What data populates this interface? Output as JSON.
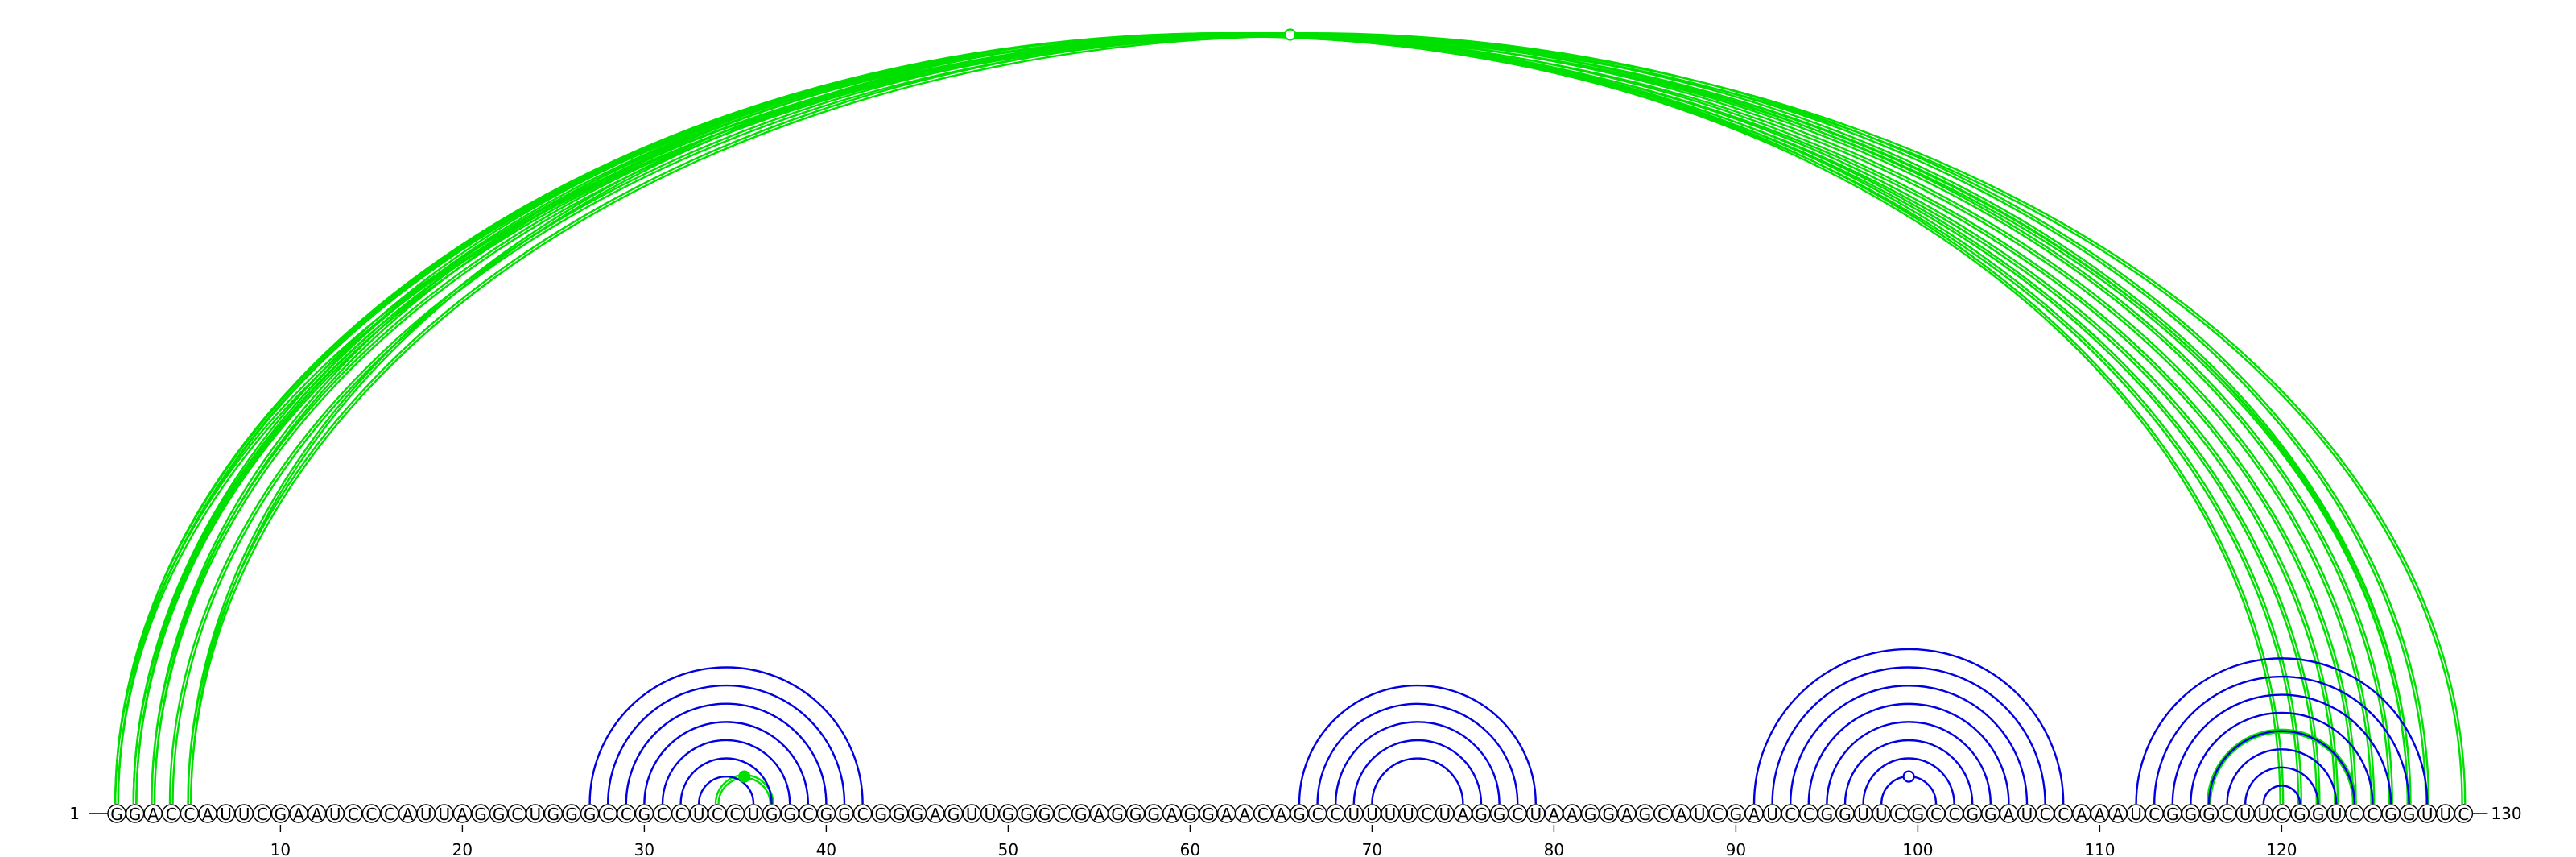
{
  "sequence": "GGACCAUUCGAAUCCCAUUAGGCUGGGCCGCCUCCUGGCGGCGGGAGUUGGGCGAGGGAGGAACAGCCUUUUCUAGGCUAAGGAGCAUCGAUCCGGUUCGCCGGAUCCAAAUCGGGCUUCGGUCCGGUUC",
  "start_label": "1",
  "end_label": "130",
  "ticks": [
    "10",
    "20",
    "30",
    "40",
    "50",
    "60",
    "70",
    "80",
    "90",
    "100",
    "110",
    "120"
  ],
  "colors": {
    "green": "#00e000",
    "blue": "#0000e0",
    "nucleotide_fill": "#ffffff",
    "nucleotide_stroke": "#000000",
    "text": "#000000"
  },
  "green_arcs": [
    {
      "i": 1,
      "j": 130,
      "strands": 2,
      "marker": "open"
    },
    {
      "i": 1,
      "j": 124,
      "strands": 2
    },
    {
      "i": 1,
      "j": 123,
      "strands": 2
    },
    {
      "i": 2,
      "j": 127,
      "strands": 2
    },
    {
      "i": 2,
      "j": 125,
      "strands": 2
    },
    {
      "i": 2,
      "j": 122,
      "strands": 2
    },
    {
      "i": 3,
      "j": 126,
      "strands": 2
    },
    {
      "i": 3,
      "j": 121,
      "strands": 2
    },
    {
      "i": 4,
      "j": 127,
      "strands": 2
    },
    {
      "i": 5,
      "j": 128,
      "strands": 2
    },
    {
      "i": 5,
      "j": 120,
      "strands": 2
    },
    {
      "i": 34,
      "j": 37,
      "strands": 2,
      "marker": "filled"
    },
    {
      "i": 116,
      "j": 124,
      "strands": 2
    }
  ],
  "blue_arcs": [
    {
      "i": 27,
      "j": 42
    },
    {
      "i": 28,
      "j": 41
    },
    {
      "i": 29,
      "j": 40
    },
    {
      "i": 30,
      "j": 39
    },
    {
      "i": 31,
      "j": 38
    },
    {
      "i": 32,
      "j": 37
    },
    {
      "i": 33,
      "j": 36
    },
    {
      "i": 66,
      "j": 79
    },
    {
      "i": 67,
      "j": 78
    },
    {
      "i": 68,
      "j": 77
    },
    {
      "i": 69,
      "j": 76
    },
    {
      "i": 70,
      "j": 75
    },
    {
      "i": 91,
      "j": 108
    },
    {
      "i": 92,
      "j": 107
    },
    {
      "i": 93,
      "j": 106
    },
    {
      "i": 94,
      "j": 105
    },
    {
      "i": 95,
      "j": 104
    },
    {
      "i": 96,
      "j": 103
    },
    {
      "i": 97,
      "j": 102
    },
    {
      "i": 98,
      "j": 101,
      "marker": "open"
    },
    {
      "i": 112,
      "j": 128
    },
    {
      "i": 113,
      "j": 127
    },
    {
      "i": 114,
      "j": 126
    },
    {
      "i": 115,
      "j": 125
    },
    {
      "i": 116,
      "j": 124
    },
    {
      "i": 117,
      "j": 123
    },
    {
      "i": 118,
      "j": 122
    },
    {
      "i": 119,
      "j": 121
    }
  ]
}
